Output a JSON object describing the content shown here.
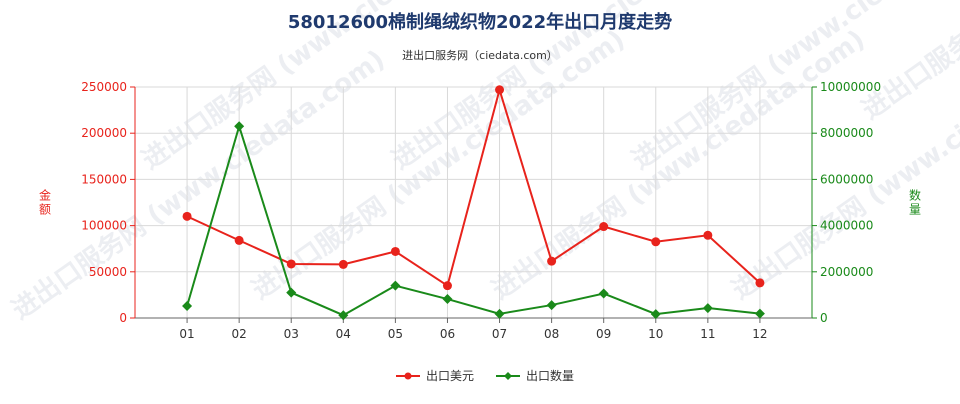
{
  "chart_data": {
    "type": "line",
    "title": "58012600棉制绳绒织物2022年出口月度走势",
    "subtitle": "进出口服务网（ciedata.com）",
    "watermark": "进出口服务网 (www.ciedata.com)",
    "categories": [
      "01",
      "02",
      "03",
      "04",
      "05",
      "06",
      "07",
      "08",
      "09",
      "10",
      "11",
      "12"
    ],
    "y_left": {
      "label": "金额",
      "ylim": [
        0,
        250000
      ],
      "ticks": [
        "0",
        "50000",
        "100000",
        "150000",
        "200000",
        "250000"
      ],
      "color": "#e8231c"
    },
    "y_right": {
      "label": "数量",
      "ylim": [
        0,
        10000000
      ],
      "ticks": [
        "0",
        "2000000",
        "4000000",
        "6000000",
        "8000000",
        "10000000"
      ],
      "color": "#1a8a1a"
    },
    "series": [
      {
        "name": "出口美元",
        "axis": "left",
        "color": "#e8231c",
        "marker": "circle",
        "values": [
          110000,
          84000,
          58500,
          58000,
          72000,
          35000,
          247000,
          61500,
          99000,
          82500,
          89500,
          38000
        ]
      },
      {
        "name": "出口数量",
        "axis": "right",
        "color": "#1a8a1a",
        "marker": "diamond",
        "values": [
          520000,
          8300000,
          1100000,
          120000,
          1400000,
          820000,
          180000,
          560000,
          1060000,
          170000,
          430000,
          190000
        ]
      }
    ],
    "grid": true,
    "legend_position": "bottom-center"
  }
}
